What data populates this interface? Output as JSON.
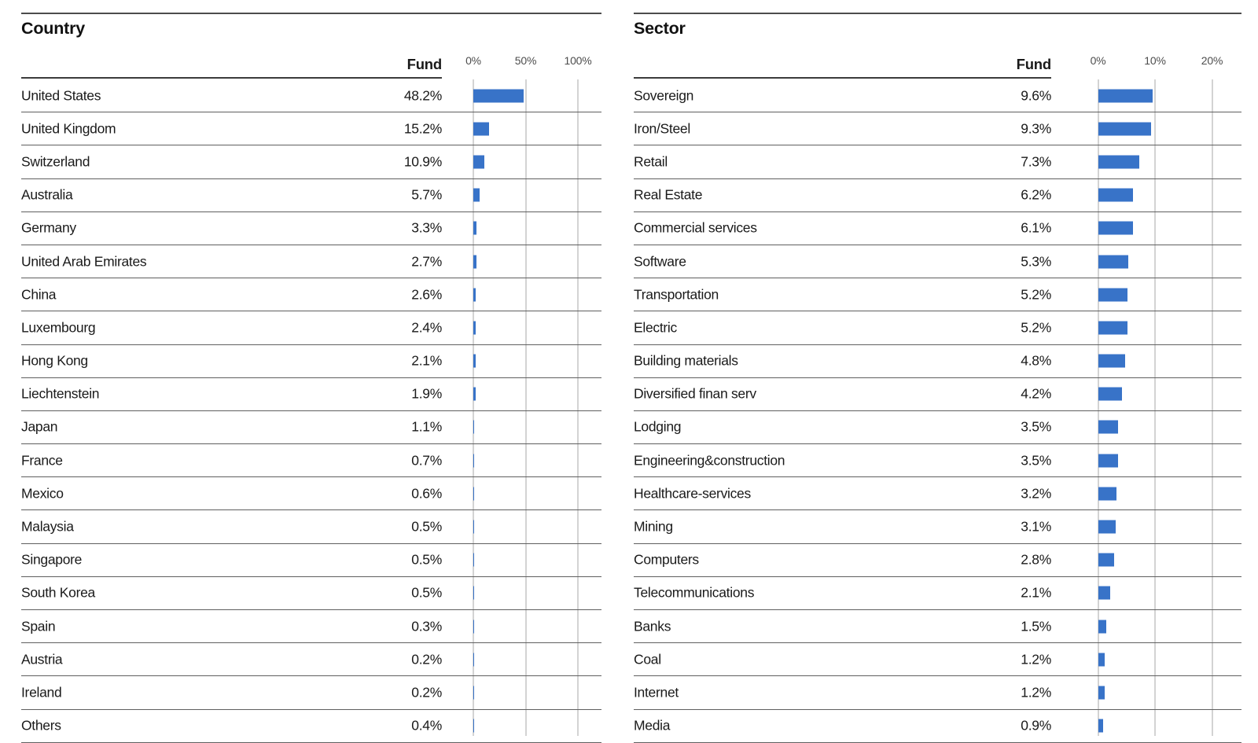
{
  "colors": {
    "bar": "#3873c8",
    "gridline": "#d3d3d3",
    "row_divider": "#5f5f5f",
    "header_rule": "#3c3c3c",
    "top_rule": "#4c4c4c",
    "text": "#1a1a1a",
    "axis_label": "#4d4d4d"
  },
  "chart_data": [
    {
      "type": "bar",
      "orientation": "horizontal",
      "title": "Country",
      "value_column_header": "Fund",
      "legend": "none",
      "grid": "vertical-gridlines",
      "axis_ticks": [
        "0%",
        "50%",
        "100%"
      ],
      "axis_tick_values": [
        0,
        50,
        100
      ],
      "axis_range": [
        0,
        100
      ],
      "categories": [
        "United States",
        "United Kingdom",
        "Switzerland",
        "Australia",
        "Germany",
        "United Arab Emirates",
        "China",
        "Luxembourg",
        "Hong Kong",
        "Liechtenstein",
        "Japan",
        "France",
        "Mexico",
        "Malaysia",
        "Singapore",
        "South Korea",
        "Spain",
        "Austria",
        "Ireland",
        "Others"
      ],
      "values": [
        48.2,
        15.2,
        10.9,
        5.7,
        3.3,
        2.7,
        2.6,
        2.4,
        2.1,
        1.9,
        1.1,
        0.7,
        0.6,
        0.5,
        0.5,
        0.5,
        0.3,
        0.2,
        0.2,
        0.4
      ],
      "value_labels": [
        "48.2%",
        "15.2%",
        "10.9%",
        "5.7%",
        "3.3%",
        "2.7%",
        "2.6%",
        "2.4%",
        "2.1%",
        "1.9%",
        "1.1%",
        "0.7%",
        "0.6%",
        "0.5%",
        "0.5%",
        "0.5%",
        "0.3%",
        "0.2%",
        "0.2%",
        "0.4%"
      ]
    },
    {
      "type": "bar",
      "orientation": "horizontal",
      "title": "Sector",
      "value_column_header": "Fund",
      "legend": "none",
      "grid": "vertical-gridlines",
      "axis_ticks": [
        "0%",
        "10%",
        "20%"
      ],
      "axis_tick_values": [
        0,
        10,
        20
      ],
      "axis_range": [
        0,
        20
      ],
      "categories": [
        "Sovereign",
        "Iron/Steel",
        "Retail",
        "Real Estate",
        "Commercial services",
        "Software",
        "Transportation",
        "Electric",
        "Building materials",
        "Diversified finan serv",
        "Lodging",
        "Engineering&construction",
        "Healthcare-services",
        "Mining",
        "Computers",
        "Telecommunications",
        "Banks",
        "Coal",
        "Internet",
        "Media"
      ],
      "values": [
        9.6,
        9.3,
        7.3,
        6.2,
        6.1,
        5.3,
        5.2,
        5.2,
        4.8,
        4.2,
        3.5,
        3.5,
        3.2,
        3.1,
        2.8,
        2.1,
        1.5,
        1.2,
        1.2,
        0.9
      ],
      "value_labels": [
        "9.6%",
        "9.3%",
        "7.3%",
        "6.2%",
        "6.1%",
        "5.3%",
        "5.2%",
        "5.2%",
        "4.8%",
        "4.2%",
        "3.5%",
        "3.5%",
        "3.2%",
        "3.1%",
        "2.8%",
        "2.1%",
        "1.5%",
        "1.2%",
        "1.2%",
        "0.9%"
      ]
    }
  ]
}
